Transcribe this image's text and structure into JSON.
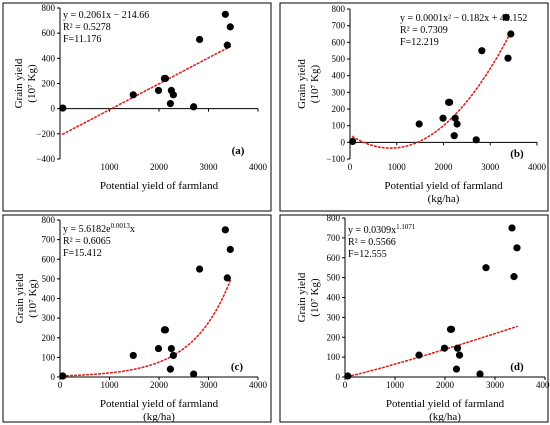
{
  "figure": {
    "common_x": [
      56,
      1480,
      1990,
      2110,
      2130,
      2230,
      2250,
      2290,
      2700,
      2820,
      3340,
      3380,
      3440
    ],
    "common_y": [
      5,
      110,
      145,
      240,
      240,
      40,
      145,
      110,
      15,
      550,
      750,
      505,
      650
    ]
  },
  "chart_data": [
    {
      "id": "a",
      "type": "scatter",
      "panel_label": "(a)",
      "xlabel": [
        "Potential yield of farmland",
        ""
      ],
      "ylabel": [
        "Grain yield",
        "(10⁷ Kg)"
      ],
      "xlim": [
        0,
        4000
      ],
      "ylim": [
        -400,
        800
      ],
      "xticks": [
        0,
        1000,
        2000,
        3000,
        4000
      ],
      "yticks": [
        -400,
        -200,
        0,
        200,
        400,
        600,
        800
      ],
      "xtick_labels": [
        "",
        "1000",
        "2000",
        "3000",
        "4000"
      ],
      "ytick_labels": [
        "−400",
        "−200",
        "0",
        "200",
        "400",
        "600",
        "800"
      ],
      "annotations": [
        "y = 0.2061x − 214.66",
        "R² = 0.5278",
        "F=11.176"
      ],
      "trend": {
        "kind": "linear",
        "a": 0.2061,
        "b": -214.66,
        "x0": 56,
        "x1": 3440
      }
    },
    {
      "id": "b",
      "type": "scatter",
      "panel_label": "(b)",
      "xlabel": [
        "Potential yield of farmland",
        "(kg/ha)"
      ],
      "ylabel": [
        "Grain yield",
        "(10⁷ Kg)"
      ],
      "xlim": [
        0,
        4000
      ],
      "ylim": [
        -100,
        800
      ],
      "xticks": [
        0,
        1000,
        2000,
        3000,
        4000
      ],
      "yticks": [
        -100,
        0,
        100,
        200,
        300,
        400,
        500,
        600,
        700,
        800
      ],
      "xtick_labels": [
        "0",
        "1000",
        "2000",
        "3000",
        "4000"
      ],
      "ytick_labels": [
        "−100",
        "0",
        "100",
        "200",
        "300",
        "400",
        "500",
        "600",
        "700",
        "800"
      ],
      "annotations": [
        "y = 0.0001x² − 0.182x + 44.152",
        "R² = 0.7309",
        "F=12.219"
      ],
      "trend": {
        "kind": "poly2",
        "a": 0.000105,
        "b": -0.182,
        "c": 44.152,
        "x0": 56,
        "x1": 3440
      }
    },
    {
      "id": "c",
      "type": "scatter",
      "panel_label": "(c)",
      "xlabel": [
        "Potential yield of farmland",
        "(kg/ha)"
      ],
      "ylabel": [
        "Grain yield",
        "(10⁷ Kg)"
      ],
      "xlim": [
        0,
        4000
      ],
      "ylim": [
        0,
        800
      ],
      "xticks": [
        0,
        1000,
        2000,
        3000,
        4000
      ],
      "yticks": [
        0,
        100,
        200,
        300,
        400,
        500,
        600,
        700,
        800
      ],
      "xtick_labels": [
        "0",
        "1000",
        "2000",
        "3000",
        "4000"
      ],
      "ytick_labels": [
        "0",
        "100",
        "200",
        "300",
        "400",
        "500",
        "600",
        "700",
        "800"
      ],
      "annotations": [
        "y = 5.6182e^0.0013x",
        "R² = 0.6065",
        "F=15.412"
      ],
      "trend": {
        "kind": "exp",
        "a": 5.6182,
        "b": 0.0013,
        "x0": 56,
        "x1": 3440
      }
    },
    {
      "id": "d",
      "type": "scatter",
      "panel_label": "(d)",
      "xlabel": [
        "Potential yield of farmland",
        "(kg/ha)"
      ],
      "ylabel": [
        "Grain yield",
        "(10⁷ Kg)"
      ],
      "xlim": [
        0,
        4000
      ],
      "ylim": [
        0,
        800
      ],
      "xticks": [
        0,
        1000,
        2000,
        3000,
        4000
      ],
      "yticks": [
        0,
        100,
        200,
        300,
        400,
        500,
        600,
        700,
        800
      ],
      "xtick_labels": [
        "0",
        "1000",
        "2000",
        "3000",
        "4000"
      ],
      "ytick_labels": [
        "0",
        "100",
        "200",
        "300",
        "400",
        "500",
        "600",
        "700",
        "800"
      ],
      "annotations": [
        "y = 0.0309x^1.1071",
        "R² = 0.5566",
        "F=12.555"
      ],
      "trend": {
        "kind": "power",
        "a": 0.0309,
        "b": 1.1071,
        "x0": 56,
        "x1": 3440
      }
    }
  ]
}
